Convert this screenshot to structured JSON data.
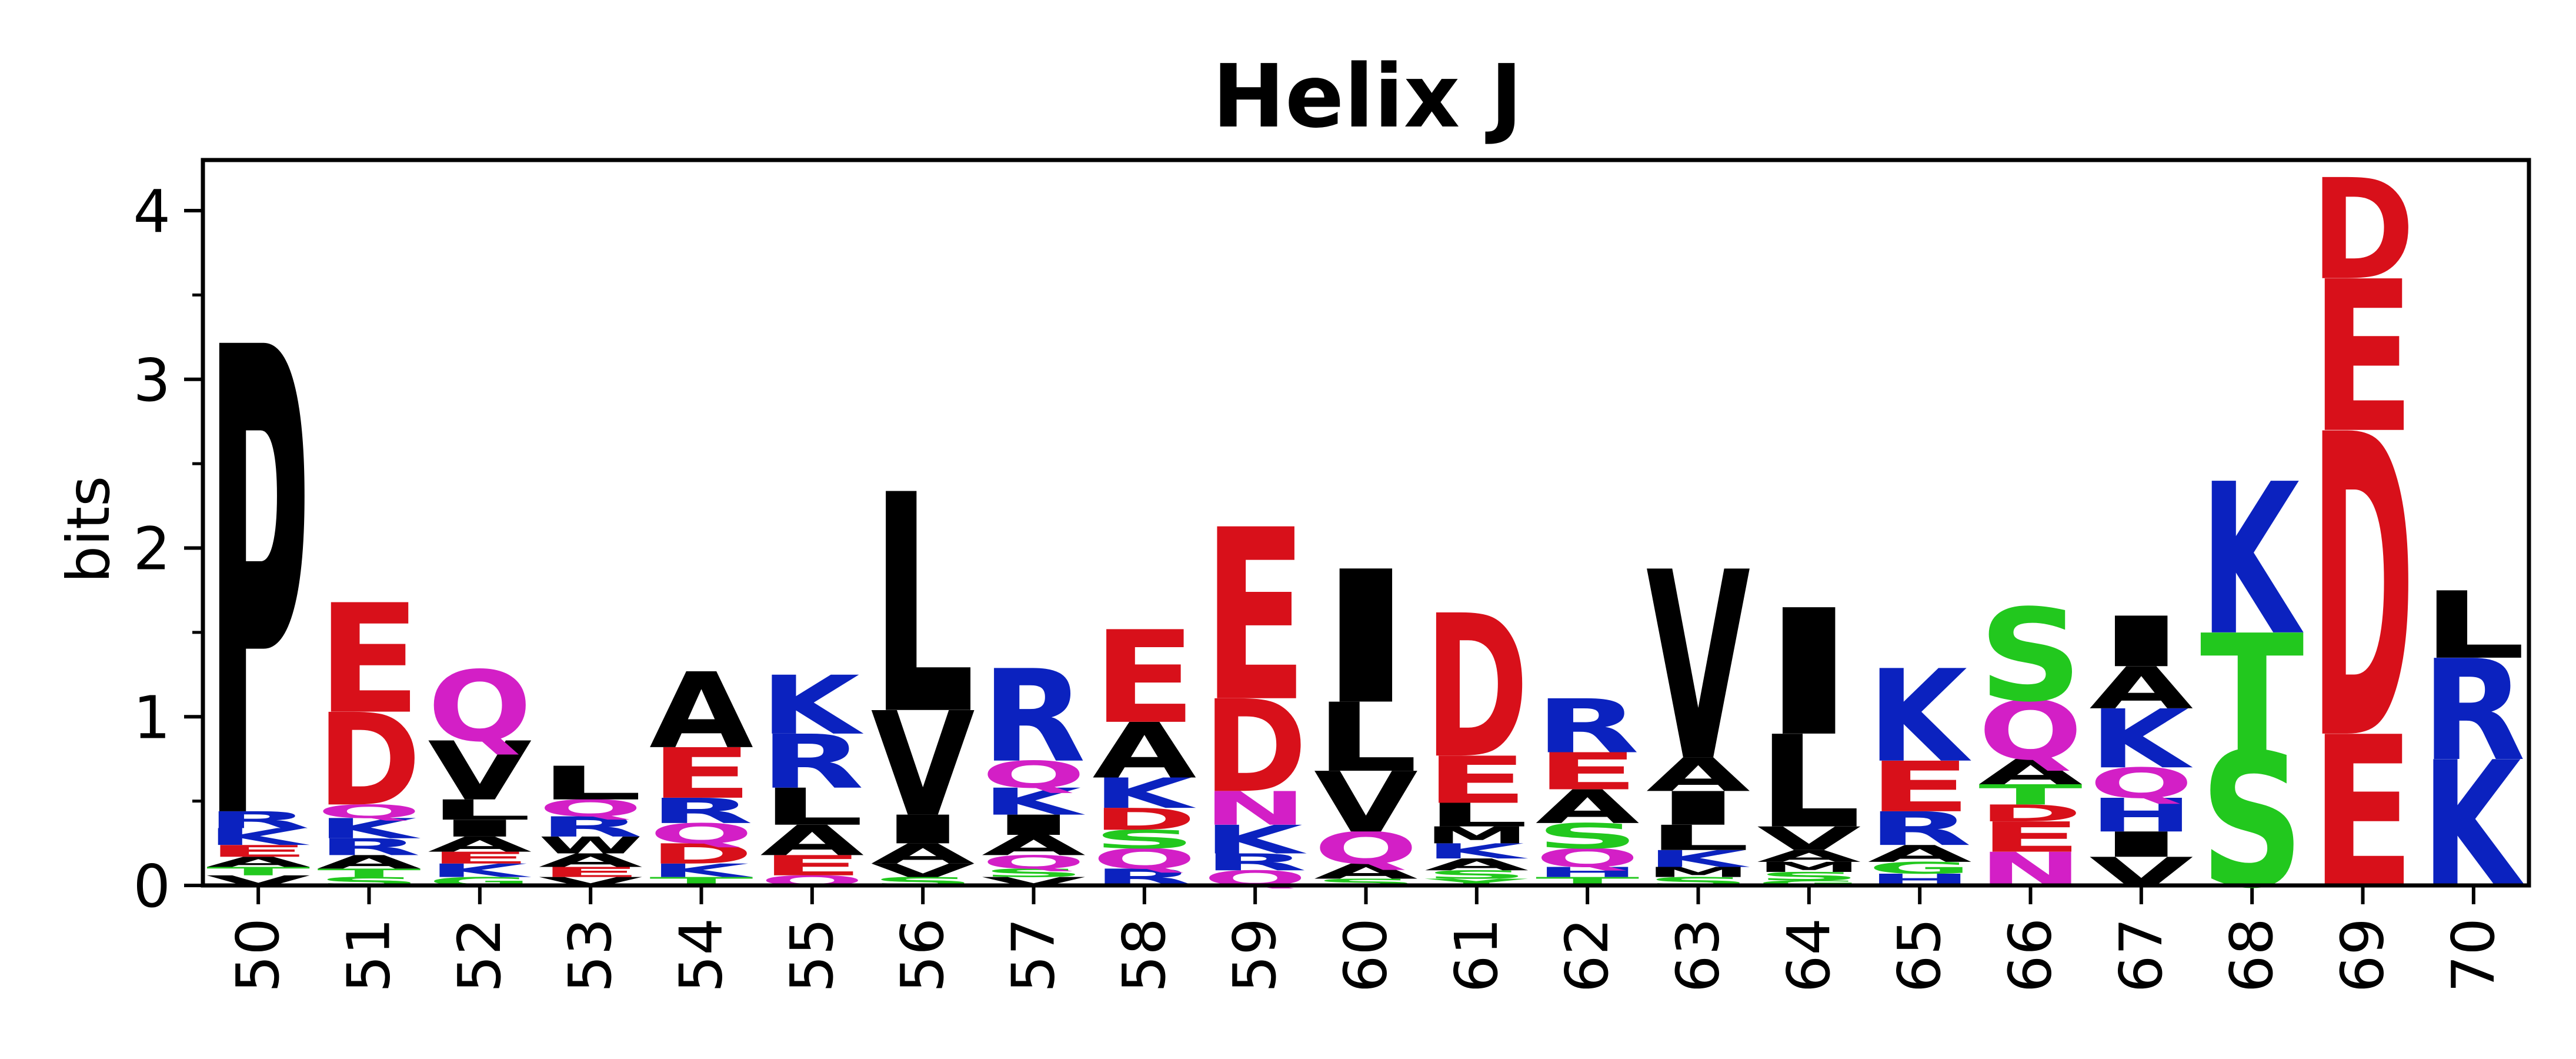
{
  "chart_data": {
    "type": "sequence_logo",
    "title": "Helix J",
    "xlabel": "",
    "ylabel": "bits",
    "ylim": [
      0,
      4.3
    ],
    "yticks": [
      0,
      1,
      2,
      3,
      4
    ],
    "grid": false,
    "colors": {
      "black": "#000000",
      "blue": "#0b22bf",
      "red": "#d8101a",
      "magenta": "#d31fc6",
      "green": "#22c81e"
    },
    "color_scheme": {
      "A": "black",
      "V": "black",
      "L": "black",
      "I": "black",
      "P": "black",
      "F": "black",
      "M": "black",
      "W": "black",
      "C": "black",
      "K": "blue",
      "R": "blue",
      "H": "blue",
      "D": "red",
      "E": "red",
      "Q": "magenta",
      "N": "magenta",
      "S": "green",
      "T": "green",
      "G": "green",
      "Y": "green"
    },
    "positions": [
      {
        "pos": "50",
        "stack": [
          [
            "V",
            0.06
          ],
          [
            "T",
            0.05
          ],
          [
            "A",
            0.06
          ],
          [
            "E",
            0.07
          ],
          [
            "K",
            0.1
          ],
          [
            "R",
            0.1
          ],
          [
            "P",
            2.78
          ]
        ]
      },
      {
        "pos": "51",
        "stack": [
          [
            "S",
            0.05
          ],
          [
            "T",
            0.05
          ],
          [
            "A",
            0.08
          ],
          [
            "R",
            0.1
          ],
          [
            "K",
            0.12
          ],
          [
            "Q",
            0.08
          ],
          [
            "D",
            0.55
          ],
          [
            "E",
            0.65
          ]
        ]
      },
      {
        "pos": "52",
        "stack": [
          [
            "G",
            0.05
          ],
          [
            "K",
            0.08
          ],
          [
            "E",
            0.07
          ],
          [
            "A",
            0.09
          ],
          [
            "I",
            0.1
          ],
          [
            "L",
            0.12
          ],
          [
            "V",
            0.35
          ],
          [
            "Q",
            0.42
          ]
        ]
      },
      {
        "pos": "53",
        "stack": [
          [
            "V",
            0.05
          ],
          [
            "E",
            0.06
          ],
          [
            "A",
            0.08
          ],
          [
            "W",
            0.1
          ],
          [
            "R",
            0.12
          ],
          [
            "Q",
            0.1
          ],
          [
            "L",
            0.2
          ]
        ]
      },
      {
        "pos": "54",
        "stack": [
          [
            "T",
            0.05
          ],
          [
            "K",
            0.08
          ],
          [
            "D",
            0.12
          ],
          [
            "Q",
            0.12
          ],
          [
            "R",
            0.15
          ],
          [
            "E",
            0.3
          ],
          [
            "A",
            0.45
          ]
        ]
      },
      {
        "pos": "55",
        "stack": [
          [
            "Q",
            0.06
          ],
          [
            "E",
            0.12
          ],
          [
            "A",
            0.18
          ],
          [
            "L",
            0.22
          ],
          [
            "R",
            0.32
          ],
          [
            "K",
            0.35
          ]
        ]
      },
      {
        "pos": "56",
        "stack": [
          [
            "S",
            0.05
          ],
          [
            "V",
            0.08
          ],
          [
            "A",
            0.12
          ],
          [
            "I",
            0.17
          ],
          [
            "V",
            0.62
          ],
          [
            "L",
            1.3
          ]
        ]
      },
      {
        "pos": "57",
        "stack": [
          [
            "V",
            0.05
          ],
          [
            "S",
            0.05
          ],
          [
            "Q",
            0.08
          ],
          [
            "A",
            0.12
          ],
          [
            "I",
            0.12
          ],
          [
            "K",
            0.16
          ],
          [
            "Q",
            0.16
          ],
          [
            "R",
            0.55
          ]
        ]
      },
      {
        "pos": "58",
        "stack": [
          [
            "R",
            0.1
          ],
          [
            "Q",
            0.12
          ],
          [
            "S",
            0.11
          ],
          [
            "D",
            0.13
          ],
          [
            "K",
            0.18
          ],
          [
            "A",
            0.33
          ],
          [
            "E",
            0.55
          ]
        ]
      },
      {
        "pos": "59",
        "stack": [
          [
            "Q",
            0.09
          ],
          [
            "R",
            0.1
          ],
          [
            "K",
            0.17
          ],
          [
            "N",
            0.2
          ],
          [
            "D",
            0.55
          ],
          [
            "E",
            1.02
          ]
        ]
      },
      {
        "pos": "60",
        "stack": [
          [
            "S",
            0.04
          ],
          [
            "A",
            0.09
          ],
          [
            "Q",
            0.19
          ],
          [
            "V",
            0.36
          ],
          [
            "L",
            0.41
          ],
          [
            "I",
            0.79
          ]
        ]
      },
      {
        "pos": "61",
        "stack": [
          [
            "Y",
            0.04
          ],
          [
            "S",
            0.05
          ],
          [
            "A",
            0.07
          ],
          [
            "K",
            0.09
          ],
          [
            "M",
            0.1
          ],
          [
            "L",
            0.14
          ],
          [
            "E",
            0.28
          ],
          [
            "D",
            0.85
          ]
        ]
      },
      {
        "pos": "62",
        "stack": [
          [
            "T",
            0.05
          ],
          [
            "H",
            0.06
          ],
          [
            "Q",
            0.11
          ],
          [
            "S",
            0.15
          ],
          [
            "A",
            0.2
          ],
          [
            "E",
            0.22
          ],
          [
            "R",
            0.32
          ]
        ]
      },
      {
        "pos": "63",
        "stack": [
          [
            "S",
            0.05
          ],
          [
            "M",
            0.06
          ],
          [
            "K",
            0.1
          ],
          [
            "L",
            0.15
          ],
          [
            "I",
            0.2
          ],
          [
            "A",
            0.2
          ],
          [
            "V",
            1.12
          ]
        ]
      },
      {
        "pos": "64",
        "stack": [
          [
            "G",
            0.03
          ],
          [
            "S",
            0.05
          ],
          [
            "M",
            0.06
          ],
          [
            "A",
            0.07
          ],
          [
            "V",
            0.14
          ],
          [
            "L",
            0.55
          ],
          [
            "I",
            0.75
          ]
        ]
      },
      {
        "pos": "65",
        "stack": [
          [
            "H",
            0.07
          ],
          [
            "G",
            0.07
          ],
          [
            "A",
            0.1
          ],
          [
            "R",
            0.2
          ],
          [
            "E",
            0.3
          ],
          [
            "K",
            0.55
          ]
        ]
      },
      {
        "pos": "66",
        "stack": [
          [
            "N",
            0.2
          ],
          [
            "E",
            0.18
          ],
          [
            "D",
            0.1
          ],
          [
            "T",
            0.12
          ],
          [
            "A",
            0.15
          ],
          [
            "Q",
            0.35
          ],
          [
            "S",
            0.55
          ]
        ]
      },
      {
        "pos": "67",
        "stack": [
          [
            "V",
            0.17
          ],
          [
            "I",
            0.15
          ],
          [
            "H",
            0.2
          ],
          [
            "Q",
            0.18
          ],
          [
            "K",
            0.35
          ],
          [
            "A",
            0.25
          ],
          [
            "I",
            0.3
          ]
        ]
      },
      {
        "pos": "68",
        "stack": [
          [
            "S",
            0.8
          ],
          [
            "T",
            0.7
          ],
          [
            "K",
            0.9
          ]
        ]
      },
      {
        "pos": "69",
        "stack": [
          [
            "E",
            0.9
          ],
          [
            "D",
            1.8
          ],
          [
            "E",
            0.9
          ],
          [
            "D",
            0.6
          ]
        ]
      },
      {
        "pos": "70",
        "stack": [
          [
            "K",
            0.75
          ],
          [
            "R",
            0.6
          ],
          [
            "L",
            0.4
          ]
        ]
      }
    ]
  }
}
